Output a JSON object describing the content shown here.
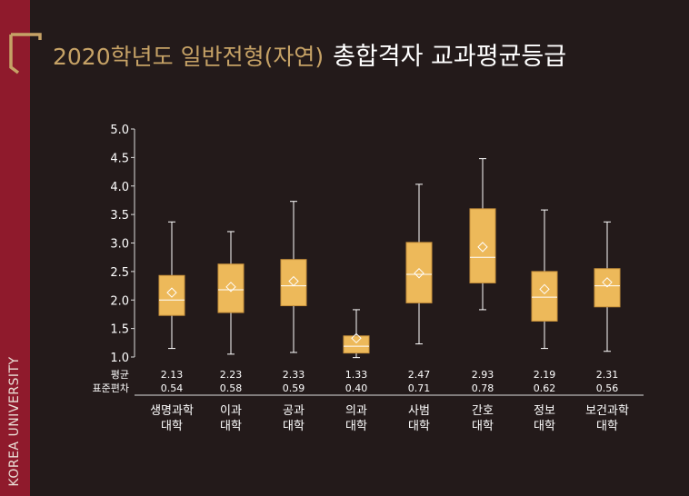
{
  "sidebar": {
    "label": "KOREA UNIVERSITY"
  },
  "header": {
    "title_prefix": "2020학년도 일반전형(자연)",
    "title_main": "총합격자 교과평균등급"
  },
  "colors": {
    "box_fill": "#edb95a",
    "gold": "#c6a266",
    "sidebar": "#8f1a2c",
    "background": "#231a1a",
    "axis": "#dddddd"
  },
  "chart_data": {
    "type": "box",
    "ylim": [
      1.0,
      5.0
    ],
    "y_ticks": [
      "1.0",
      "1.5",
      "2.0",
      "2.5",
      "3.0",
      "3.5",
      "4.0",
      "4.5",
      "5.0"
    ],
    "row_labels": {
      "mean": "평균",
      "sd": "표준편차"
    },
    "categories": [
      {
        "label_lines": [
          "생명과학",
          "대학"
        ],
        "min": 1.15,
        "q1": 1.73,
        "median": 2.0,
        "q3": 2.43,
        "max": 3.37,
        "mean": 2.13,
        "mean_label": "2.13",
        "sd_label": "0.54"
      },
      {
        "label_lines": [
          "이과",
          "대학"
        ],
        "min": 1.05,
        "q1": 1.78,
        "median": 2.18,
        "q3": 2.63,
        "max": 3.2,
        "mean": 2.23,
        "mean_label": "2.23",
        "sd_label": "0.58"
      },
      {
        "label_lines": [
          "공과",
          "대학"
        ],
        "min": 1.08,
        "q1": 1.9,
        "median": 2.25,
        "q3": 2.71,
        "max": 3.73,
        "mean": 2.33,
        "mean_label": "2.33",
        "sd_label": "0.59"
      },
      {
        "label_lines": [
          "의과",
          "대학"
        ],
        "min": 0.99,
        "q1": 1.07,
        "median": 1.19,
        "q3": 1.37,
        "max": 1.83,
        "mean": 1.33,
        "mean_label": "1.33",
        "sd_label": "0.40"
      },
      {
        "label_lines": [
          "사범",
          "대학"
        ],
        "min": 1.23,
        "q1": 1.95,
        "median": 2.45,
        "q3": 3.01,
        "max": 4.03,
        "mean": 2.47,
        "mean_label": "2.47",
        "sd_label": "0.71"
      },
      {
        "label_lines": [
          "간호",
          "대학"
        ],
        "min": 1.83,
        "q1": 2.3,
        "median": 2.75,
        "q3": 3.6,
        "max": 4.48,
        "mean": 2.93,
        "mean_label": "2.93",
        "sd_label": "0.78"
      },
      {
        "label_lines": [
          "정보",
          "대학"
        ],
        "min": 1.15,
        "q1": 1.63,
        "median": 2.05,
        "q3": 2.5,
        "max": 3.58,
        "mean": 2.19,
        "mean_label": "2.19",
        "sd_label": "0.62"
      },
      {
        "label_lines": [
          "보건과학",
          "대학"
        ],
        "min": 1.1,
        "q1": 1.88,
        "median": 2.25,
        "q3": 2.55,
        "max": 3.37,
        "mean": 2.31,
        "mean_label": "2.31",
        "sd_label": "0.56"
      }
    ]
  }
}
